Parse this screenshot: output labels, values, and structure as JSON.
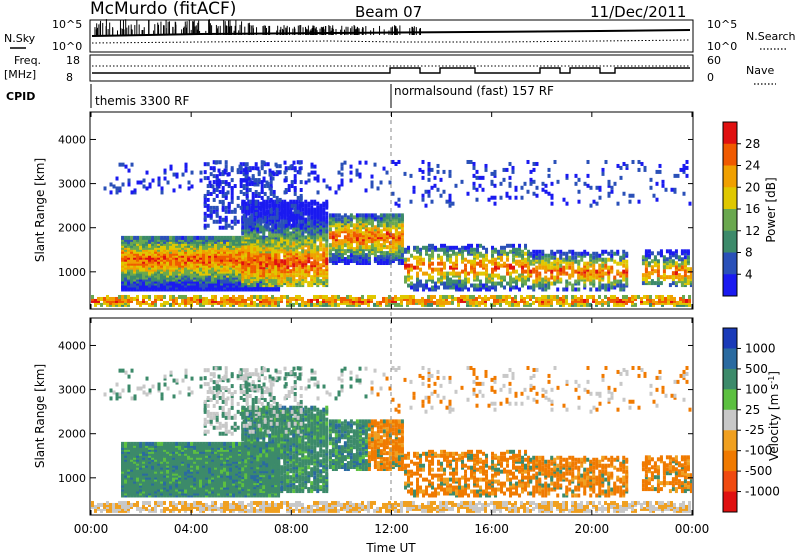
{
  "header": {
    "title": "McMurdo (fitACF)",
    "beam": "Beam 07",
    "date": "11/Dec/2011"
  },
  "top_panels": {
    "nsky_label": "N.Sky",
    "nsky_ticks": [
      "10^5",
      "10^0"
    ],
    "nsearch_ticks": [
      "10^5",
      "10^0"
    ],
    "nsearch_label": "N.Search",
    "freq_label": "Freq.",
    "freq_unit": "[MHz]",
    "freq_ticks": [
      "18",
      "8"
    ],
    "nave_ticks": [
      "60",
      "0"
    ],
    "nave_label": "Nave",
    "cpid_label": "CPID",
    "cpid_segments": [
      {
        "label": "themis 3300 RF",
        "start_hour": 0
      },
      {
        "label": "normalsound (fast) 157 RF",
        "start_hour": 12
      }
    ]
  },
  "chart_data": [
    {
      "type": "heatmap",
      "name": "power_panel",
      "ylabel": "Slant Range [km]",
      "yticks": [
        1000,
        2000,
        3000,
        4000
      ],
      "ylim": [
        180,
        4600
      ],
      "colorbar_label": "Power [dB]",
      "colorbar_ticks": [
        "28",
        "24",
        "20",
        "16",
        "12",
        "8",
        "4"
      ],
      "colorbar_colors": [
        "#e01010",
        "#f05a00",
        "#f0a000",
        "#e0c800",
        "#6aa84f",
        "#3c8a6a",
        "#2a50b8",
        "#1a1af0"
      ]
    },
    {
      "type": "heatmap",
      "name": "velocity_panel",
      "ylabel": "Slant Range [km]",
      "yticks": [
        1000,
        2000,
        3000,
        4000
      ],
      "ylim": [
        180,
        4600
      ],
      "colorbar_label": "Velocity [m s",
      "colorbar_label_sup": "-1",
      "colorbar_label_end": "]",
      "colorbar_ticks": [
        "1000",
        "500",
        "100",
        "25",
        "-25",
        "-100",
        "-500",
        "-1000"
      ],
      "colorbar_colors": [
        "#1a3ab8",
        "#2a6aa0",
        "#3c8a6a",
        "#5cc040",
        "#c8c8c8",
        "#f0a020",
        "#f07a00",
        "#f04a10",
        "#e01010"
      ],
      "xlabel": "Time UT",
      "xticks": [
        "00:00",
        "04:00",
        "08:00",
        "12:00",
        "16:00",
        "20:00",
        "00:00"
      ]
    }
  ]
}
